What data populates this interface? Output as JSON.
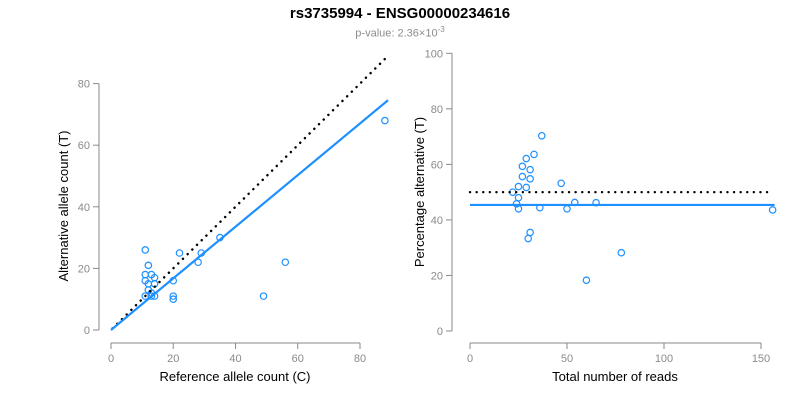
{
  "title": "rs3735994 - ENSG00000234616",
  "subtitle": {
    "text": "p-value: 2.36×10",
    "superscript": "-3"
  },
  "colors": {
    "accent_blue": "#1E90FF",
    "axis_gray": "#8a8a8a",
    "tick_label_gray": "#8a8a8a",
    "dotted_line_black": "#000000",
    "subtitle_gray": "#8c8c8c",
    "title_black": "#000000",
    "background": "#ffffff"
  },
  "chart_data": [
    {
      "type": "scatter",
      "title": "",
      "xlabel": "Reference allele count (C)",
      "ylabel": "Alternative allele count (T)",
      "xlim": [
        0,
        89
      ],
      "ylim": [
        0,
        89
      ],
      "xticks": [
        0,
        20,
        40,
        60,
        80
      ],
      "yticks": [
        0,
        20,
        40,
        60,
        80
      ],
      "grid": false,
      "legend": "none",
      "point_color": "#1E90FF",
      "points": [
        [
          11,
          26
        ],
        [
          22,
          25
        ],
        [
          12,
          21
        ],
        [
          11,
          18
        ],
        [
          13,
          18
        ],
        [
          14,
          17
        ],
        [
          11,
          16
        ],
        [
          12,
          15
        ],
        [
          14,
          15
        ],
        [
          12,
          13
        ],
        [
          11,
          11
        ],
        [
          13,
          12
        ],
        [
          13,
          11
        ],
        [
          14,
          11
        ],
        [
          20,
          16
        ],
        [
          20,
          11
        ],
        [
          20,
          10
        ],
        [
          29,
          25
        ],
        [
          28,
          22
        ],
        [
          35,
          30
        ],
        [
          49,
          11
        ],
        [
          56,
          22
        ],
        [
          88,
          68
        ]
      ],
      "lines": [
        {
          "name": "identity",
          "type": "dotted",
          "color": "#000000",
          "x1": 0.5,
          "y1": 0.5,
          "x2": 88.5,
          "y2": 88.5
        },
        {
          "name": "fit",
          "type": "solid",
          "color": "#1E90FF",
          "x1": 0,
          "y1": 0,
          "x2": 89,
          "y2": 74.6
        }
      ]
    },
    {
      "type": "scatter",
      "title": "",
      "xlabel": "Total number of reads",
      "ylabel": "Percentage alternative (T)",
      "xlim": [
        0,
        158
      ],
      "ylim": [
        0,
        100
      ],
      "xticks": [
        0,
        50,
        100,
        150
      ],
      "yticks": [
        0,
        20,
        40,
        60,
        80,
        100
      ],
      "grid": false,
      "legend": "none",
      "point_color": "#1E90FF",
      "points": [
        [
          37,
          70.3
        ],
        [
          47,
          53.2
        ],
        [
          33,
          63.6
        ],
        [
          29,
          62.1
        ],
        [
          31,
          58.1
        ],
        [
          31,
          54.8
        ],
        [
          27,
          59.3
        ],
        [
          27,
          55.6
        ],
        [
          29,
          51.7
        ],
        [
          25,
          52.0
        ],
        [
          22,
          50.0
        ],
        [
          25,
          48.0
        ],
        [
          24,
          45.8
        ],
        [
          25,
          44.0
        ],
        [
          36,
          44.4
        ],
        [
          31,
          35.5
        ],
        [
          30,
          33.3
        ],
        [
          54,
          46.3
        ],
        [
          50,
          44.0
        ],
        [
          65,
          46.2
        ],
        [
          60,
          18.3
        ],
        [
          78,
          28.2
        ],
        [
          156,
          43.6
        ]
      ],
      "lines": [
        {
          "name": "expected-50pct",
          "type": "dotted",
          "color": "#000000",
          "x1": 0,
          "y1": 50,
          "x2": 153.5,
          "y2": 50
        },
        {
          "name": "fit",
          "type": "solid",
          "color": "#1E90FF",
          "x1": 0,
          "y1": 45.4,
          "x2": 157,
          "y2": 45.4
        }
      ]
    }
  ]
}
